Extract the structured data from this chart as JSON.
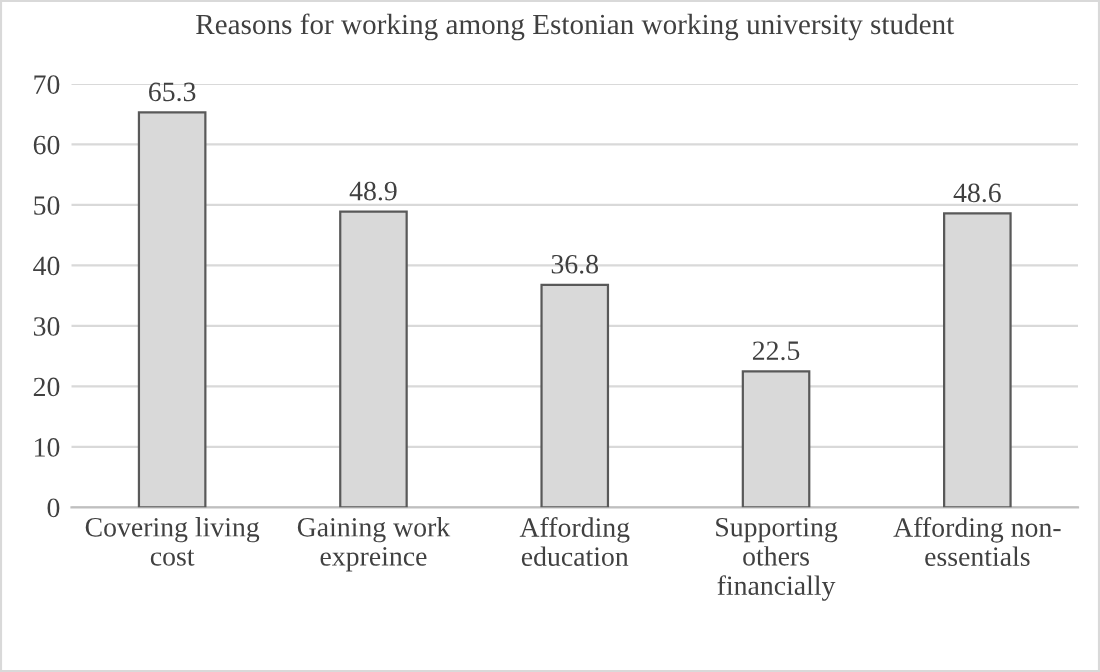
{
  "chart_data": {
    "type": "bar",
    "title": "Reasons for working among Estonian working university student",
    "categories": [
      "Covering living\ncost",
      "Gaining work\nexpreince",
      "Affording\neducation",
      "Supporting\nothers\nfinancially",
      "Affording non-\nessentials"
    ],
    "values": [
      65.3,
      48.9,
      36.8,
      22.5,
      48.6
    ],
    "color": "#d9d9d9",
    "ylim": [
      0,
      70
    ],
    "yticks": [
      0,
      10,
      20,
      30,
      40,
      50,
      60,
      70
    ],
    "grid": "y",
    "data_labels": true
  }
}
